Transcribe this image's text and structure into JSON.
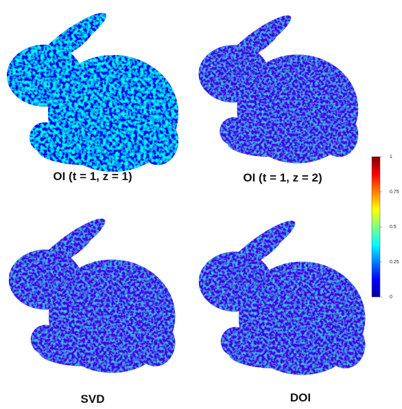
{
  "panels": [
    {
      "caption": "OI (t = 1, z = 1)"
    },
    {
      "caption": "OI (t = 1, z = 2)"
    },
    {
      "caption": "SVD"
    },
    {
      "caption": "DOI"
    }
  ],
  "colorbar": {
    "ticks": [
      0,
      0.25,
      0.5,
      0.75,
      1
    ]
  }
}
